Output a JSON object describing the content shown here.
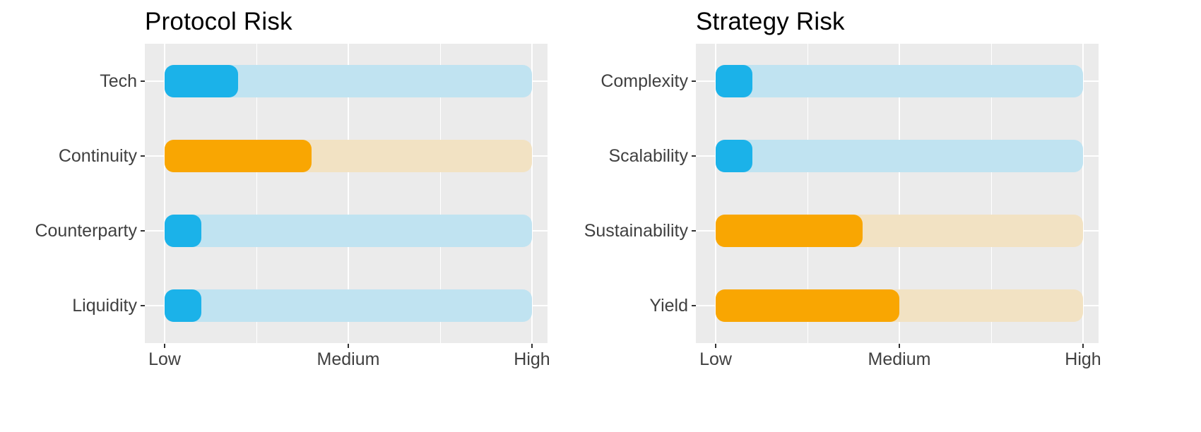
{
  "chart_data": [
    {
      "type": "bar",
      "orientation": "horizontal",
      "title": "Protocol Risk",
      "categories": [
        "Tech",
        "Continuity",
        "Counterparty",
        "Liquidity"
      ],
      "values": [
        20,
        40,
        10,
        10
      ],
      "bar_colors": [
        "blue",
        "orange",
        "blue",
        "blue"
      ],
      "track_full_value": 100,
      "x_axis": {
        "range": [
          0,
          100
        ],
        "scale_note": "0 = Low, 50 = Medium, 100 = High",
        "ticks": [
          {
            "label": "Low",
            "value": 0
          },
          {
            "label": "Medium",
            "value": 50
          },
          {
            "label": "High",
            "value": 100
          }
        ],
        "minor_ticks": [
          25,
          75
        ]
      },
      "grid": true,
      "legend": false
    },
    {
      "type": "bar",
      "orientation": "horizontal",
      "title": "Strategy Risk",
      "categories": [
        "Complexity",
        "Scalability",
        "Sustainability",
        "Yield"
      ],
      "values": [
        10,
        10,
        40,
        50
      ],
      "bar_colors": [
        "blue",
        "blue",
        "orange",
        "orange"
      ],
      "track_full_value": 100,
      "x_axis": {
        "range": [
          0,
          100
        ],
        "scale_note": "0 = Low, 50 = Medium, 100 = High",
        "ticks": [
          {
            "label": "Low",
            "value": 0
          },
          {
            "label": "Medium",
            "value": 50
          },
          {
            "label": "High",
            "value": 100
          }
        ],
        "minor_ticks": [
          25,
          75
        ]
      },
      "grid": true,
      "legend": false
    }
  ],
  "palette": {
    "blue": "#1BB2E9",
    "blue_track": "#C0E3F1",
    "orange": "#F9A602",
    "orange_track": "#F2E2C3",
    "panel_bg": "#EBEBEB",
    "gridline": "#FFFFFF",
    "title_text": "#000000",
    "axis_text": "#404040"
  }
}
